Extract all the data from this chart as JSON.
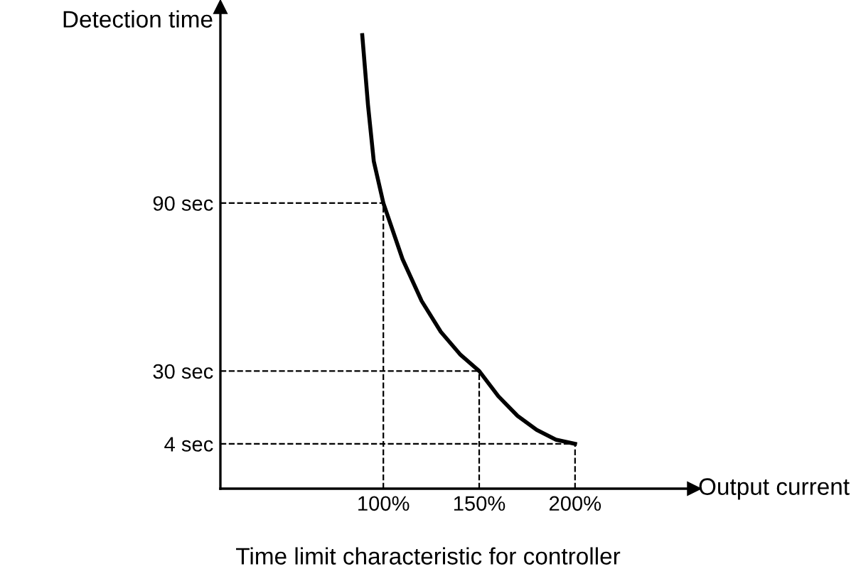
{
  "chart_data": {
    "type": "line",
    "title": "Time limit characteristic for controller",
    "xlabel": "Output current",
    "ylabel": "Detection time",
    "x": [
      89,
      92,
      95,
      100,
      110,
      120,
      130,
      140,
      150,
      160,
      170,
      180,
      190,
      200
    ],
    "series": [
      {
        "color": "#000000",
        "values": [
          150,
          125,
          105,
          90,
          70,
          55,
          44,
          36,
          30,
          21,
          14,
          9,
          5.5,
          4
        ]
      }
    ],
    "xlim": [
      15,
      262
    ],
    "ylim": [
      -12,
      160
    ],
    "xticks": [
      {
        "value": 100,
        "label": "100%"
      },
      {
        "value": 150,
        "label": "150%"
      },
      {
        "value": 200,
        "label": "200%"
      }
    ],
    "yticks": [
      {
        "value": 4,
        "label": "4 sec"
      },
      {
        "value": 30,
        "label": "30 sec"
      },
      {
        "value": 90,
        "label": "90 sec"
      }
    ],
    "ref_lines": [
      {
        "axis": "y",
        "value": 90,
        "line_style": "dashed"
      },
      {
        "axis": "y",
        "value": 30,
        "line_style": "dashed"
      },
      {
        "axis": "y",
        "value": 4,
        "line_style": "dashed"
      },
      {
        "axis": "x",
        "value": 100,
        "line_style": "dashed"
      },
      {
        "axis": "x",
        "value": 150,
        "line_style": "dashed"
      },
      {
        "axis": "x",
        "value": 200,
        "line_style": "dashed"
      }
    ],
    "grid": false,
    "marker": "none",
    "line_style": "solid"
  }
}
